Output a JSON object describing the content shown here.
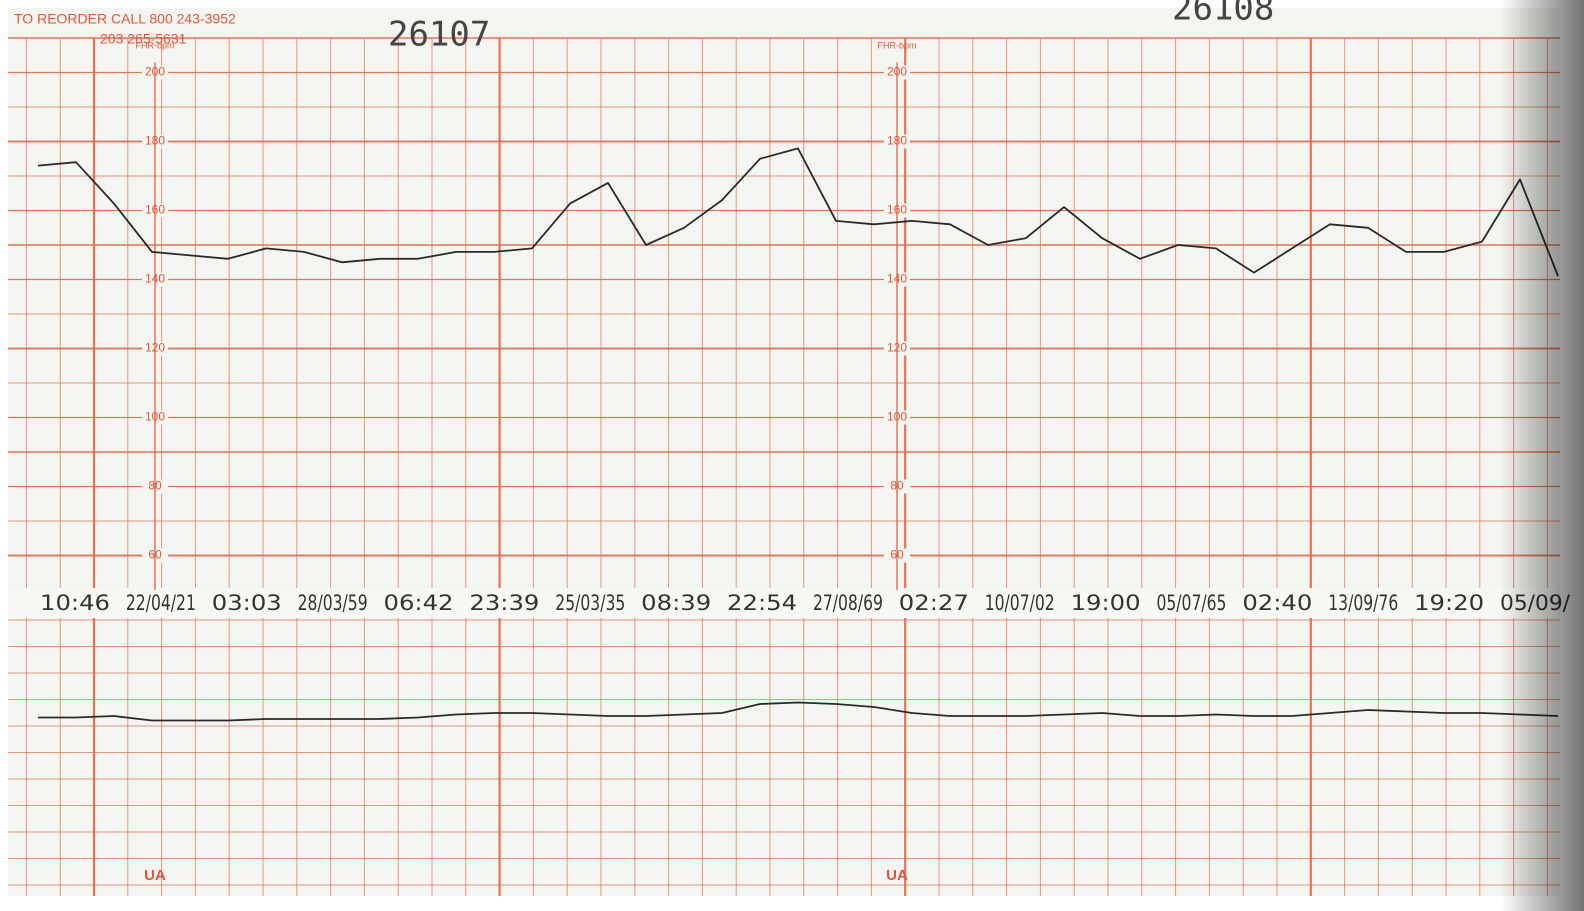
{
  "header": {
    "reorder": "TO REORDER CALL 800 243-3952",
    "phone": "203 265-5631",
    "strip_numbers": [
      "26107",
      "26108"
    ]
  },
  "chart_data": [
    {
      "type": "line",
      "y_label": "FHR-bpm",
      "ylim": [
        50,
        210
      ],
      "yticks": [
        60,
        80,
        100,
        120,
        140,
        160,
        180,
        200
      ],
      "time_labels": [
        "10:46",
        "22/04/21",
        "03:03",
        "28/03/59",
        "06:42",
        "23:39",
        "25/03/35",
        "08:39",
        "22:54",
        "27/08/69",
        "02:27",
        "10/07/02",
        "19:00",
        "05/07/65",
        "02:40",
        "13/09/76",
        "19:20",
        "05/09/"
      ],
      "series": [
        {
          "name": "FHR",
          "color": "#2a2a2a",
          "values": [
            173,
            174,
            162,
            148,
            147,
            146,
            149,
            148,
            145,
            146,
            146,
            148,
            148,
            149,
            162,
            168,
            150,
            155,
            163,
            175,
            178,
            157,
            156,
            157,
            156,
            150,
            152,
            161,
            152,
            146,
            150,
            149,
            142,
            149,
            156,
            155,
            148,
            148,
            151,
            169,
            141
          ]
        }
      ]
    },
    {
      "type": "line",
      "y_label": "UA",
      "ylim": [
        0,
        100
      ],
      "series": [
        {
          "name": "UA",
          "color": "#2a2a2a",
          "values": [
            35,
            35,
            36,
            33,
            33,
            33,
            34,
            34,
            34,
            34,
            35,
            37,
            38,
            38,
            37,
            36,
            36,
            37,
            38,
            44,
            45,
            44,
            42,
            38,
            36,
            36,
            36,
            37,
            38,
            36,
            36,
            37,
            36,
            36,
            38,
            40,
            39,
            38,
            38,
            37,
            36
          ]
        }
      ]
    }
  ]
}
